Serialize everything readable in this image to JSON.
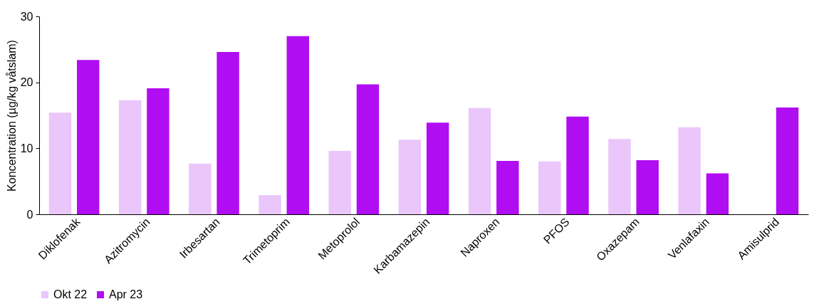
{
  "chart_data": {
    "type": "bar",
    "ylabel": "Koncentration (µg/kg våtslam)",
    "categories": [
      "Diklofenak",
      "Azitromycin",
      "Irbesartan",
      "Trimetoprim",
      "Metoprolol",
      "Karbamazepin",
      "Naproxen",
      "PFOS",
      "Oxazepam",
      "Venlafaxin",
      "Amisulprid"
    ],
    "series": [
      {
        "name": "Okt 22",
        "color": "#eac6fb",
        "values": [
          15.4,
          17.3,
          7.7,
          2.9,
          9.6,
          11.3,
          16.1,
          8.0,
          11.4,
          13.2,
          null
        ]
      },
      {
        "name": "Apr 23",
        "color": "#b10df2",
        "values": [
          23.4,
          19.1,
          24.6,
          27.0,
          19.7,
          13.9,
          8.1,
          14.8,
          8.2,
          6.2,
          16.2
        ]
      }
    ],
    "ylim": [
      0,
      30
    ],
    "yticks": [
      0,
      10,
      20,
      30
    ],
    "grid": false,
    "legend": "bottom"
  }
}
